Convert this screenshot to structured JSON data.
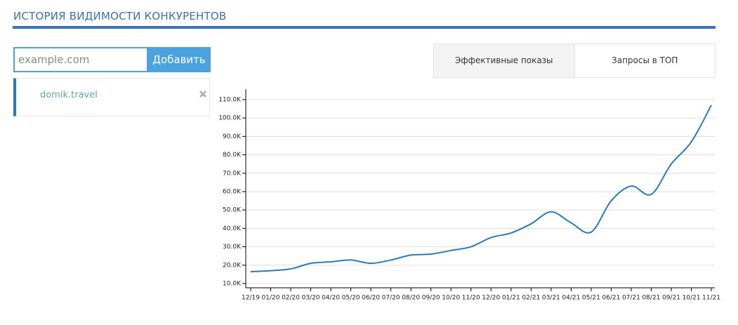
{
  "header": {
    "title": "ИСТОРИЯ ВИДИМОСТИ КОНКУРЕНТОВ"
  },
  "form": {
    "placeholder": "example.com",
    "button": "Добавить"
  },
  "tabs": [
    "Эффективные показы",
    "Запросы в ТОП"
  ],
  "competitors": [
    "domik.travel"
  ],
  "chart_data": {
    "type": "line",
    "categories": [
      "12/19",
      "01/20",
      "02/20",
      "03/20",
      "04/20",
      "05/20",
      "06/20",
      "07/20",
      "08/20",
      "09/20",
      "10/20",
      "11/20",
      "12/20",
      "01/21",
      "02/21",
      "03/21",
      "04/21",
      "05/21",
      "06/21",
      "07/21",
      "08/21",
      "09/21",
      "10/21",
      "11/21"
    ],
    "series": [
      {
        "name": "domik.travel",
        "color": "#2a7ab8",
        "values": [
          16500,
          17000,
          18000,
          21000,
          21800,
          22800,
          21000,
          22800,
          25500,
          26000,
          28000,
          30000,
          35000,
          37500,
          42500,
          49000,
          43000,
          38000,
          55000,
          63000,
          58500,
          75000,
          87000,
          107000
        ]
      }
    ],
    "ylim": [
      7700,
      115700
    ],
    "yticks": [
      {
        "value": 10000,
        "label": "10.0K"
      },
      {
        "value": 20000,
        "label": "20.0K"
      },
      {
        "value": 30000,
        "label": "30.0K"
      },
      {
        "value": 40000,
        "label": "40.0K"
      },
      {
        "value": 50000,
        "label": "50.0K"
      },
      {
        "value": 60000,
        "label": "60.0K"
      },
      {
        "value": 70000,
        "label": "70.0K"
      },
      {
        "value": 80000,
        "label": "80.0K"
      },
      {
        "value": 90000,
        "label": "90.0K"
      },
      {
        "value": 100000,
        "label": "100.0K"
      },
      {
        "value": 110000,
        "label": "110.0K"
      }
    ],
    "grid": true
  }
}
